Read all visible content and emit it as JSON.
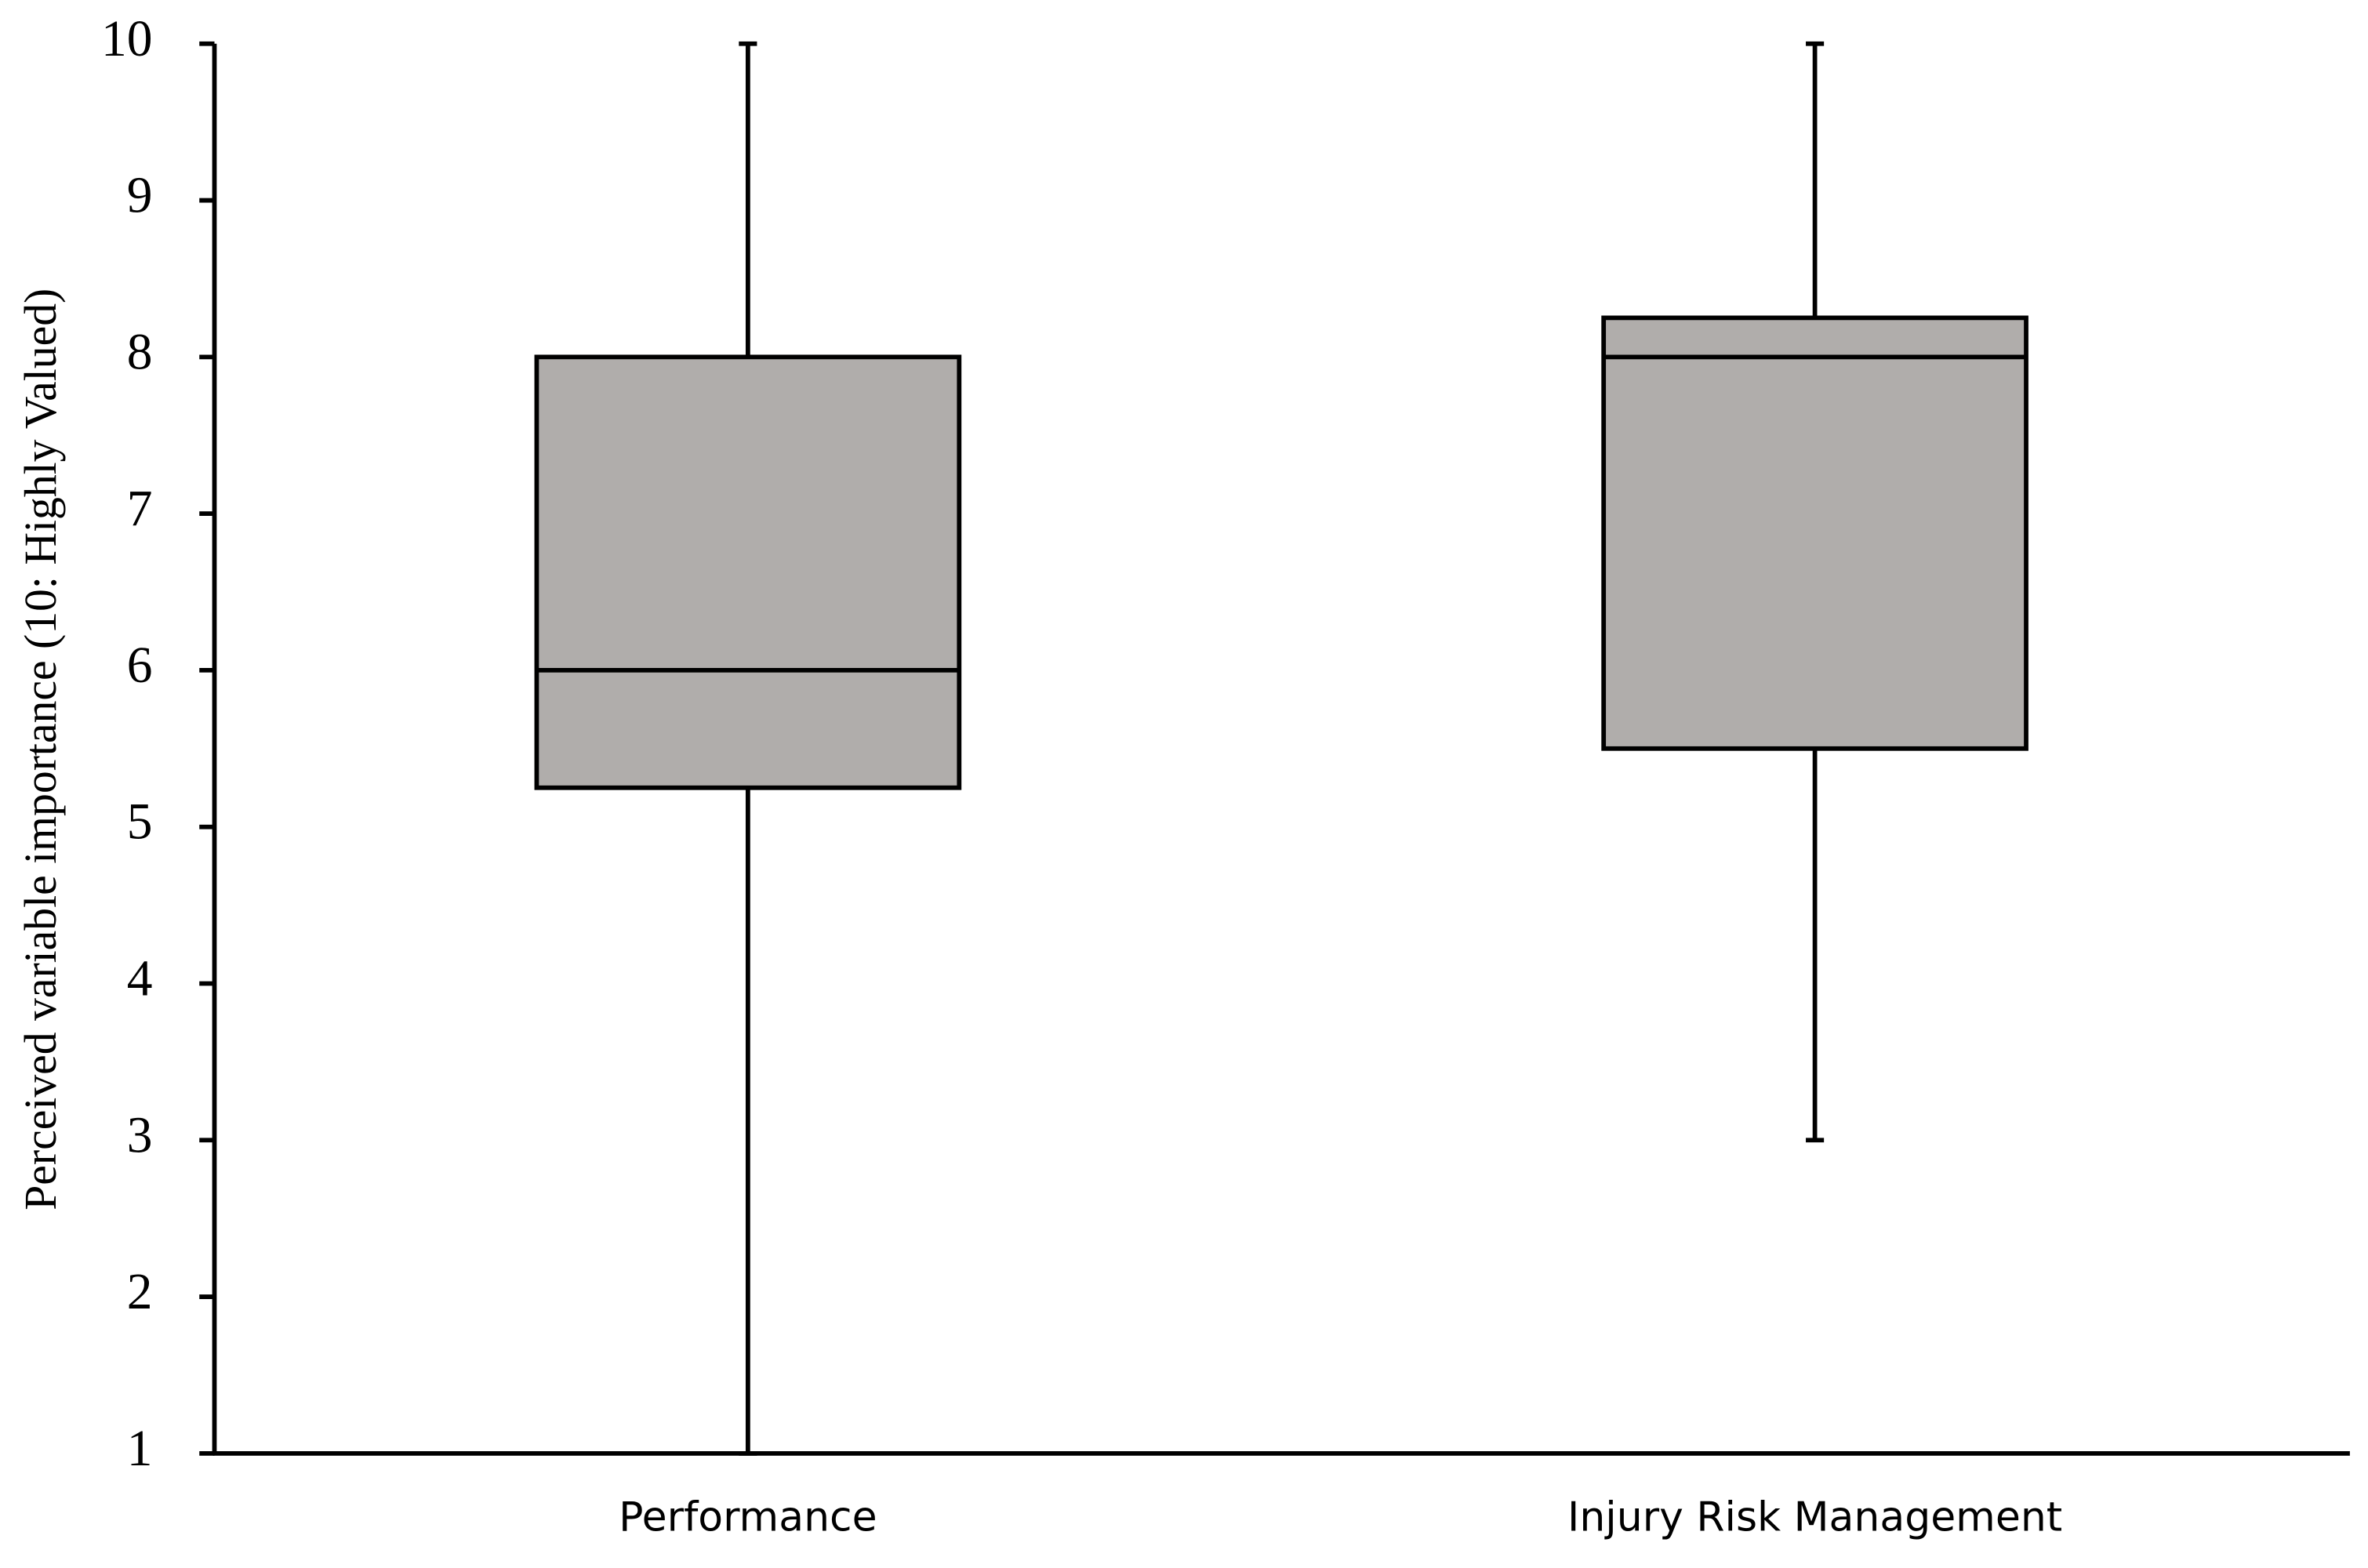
{
  "chart_data": {
    "type": "box",
    "y_label": "Perceived variable importance (10: Highly Valued)",
    "categories": [
      "Performance",
      "Injury Risk Management"
    ],
    "boxes": [
      {
        "min": 1,
        "q1": 5.25,
        "median": 6,
        "q3": 8,
        "max": 10
      },
      {
        "min": 3,
        "q1": 5.5,
        "median": 8,
        "q3": 8.25,
        "max": 10
      }
    ],
    "color": "#b0adab",
    "ylim": [
      1,
      10
    ],
    "yticks": [
      1,
      2,
      3,
      4,
      5,
      6,
      7,
      8,
      9,
      10
    ],
    "grid": false
  }
}
